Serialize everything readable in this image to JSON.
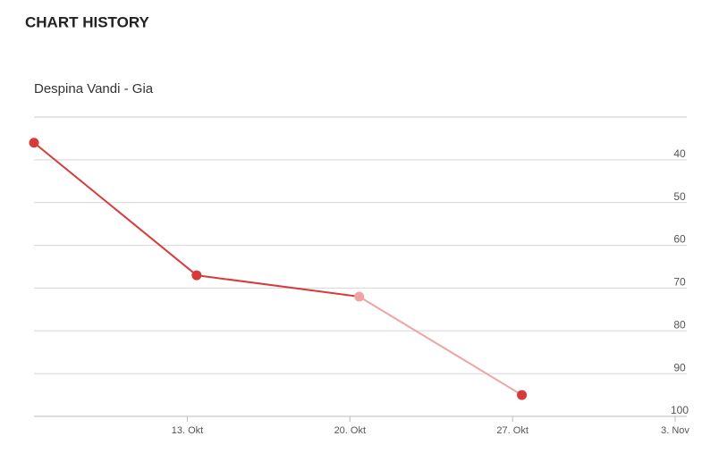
{
  "header": {
    "title": "CHART HISTORY"
  },
  "chart_data": {
    "type": "line",
    "subtitle": "Despina Vandi - Gia",
    "x": [
      6.4,
      13.4,
      20.4,
      27.4
    ],
    "series": [
      {
        "values": [
          36,
          67,
          72,
          95
        ],
        "color": "#d63a3a",
        "point_colors": [
          "#d63a3a",
          "#d63a3a",
          "#f0a3a3",
          "#d63a3a"
        ],
        "segment_colors": [
          "#d63a3a",
          "#d63a3a",
          "#f0a3a3"
        ]
      }
    ],
    "xlim": [
      6.4,
      34.5
    ],
    "xticks": [
      {
        "value": 13,
        "label": "13. Okt"
      },
      {
        "value": 20,
        "label": "20. Okt"
      },
      {
        "value": 27,
        "label": "27. Okt"
      },
      {
        "value": 34,
        "label": "3. Nov"
      }
    ],
    "ylim": [
      30,
      100
    ],
    "y_inverted": true,
    "yticks": [
      40,
      50,
      60,
      70,
      80,
      90,
      100
    ],
    "grid": true
  }
}
